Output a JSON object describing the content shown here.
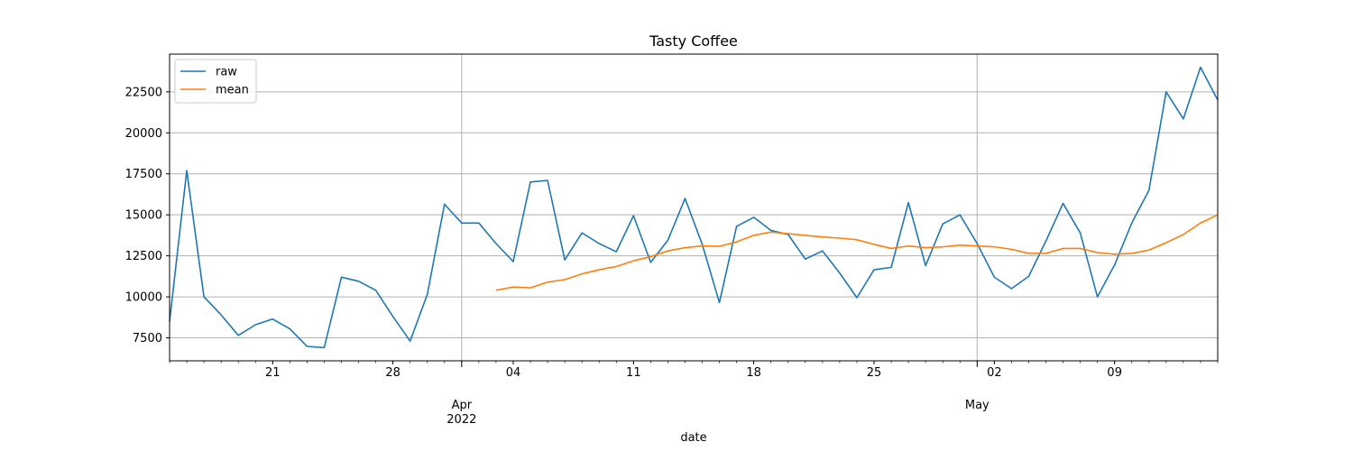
{
  "chart_data": {
    "type": "line",
    "title": "Tasty Coffee",
    "xlabel": "date",
    "ylabel": "",
    "grid": true,
    "legend_position": "upper-left",
    "x_start": "2022-03-15",
    "x_end": "2022-05-15",
    "ylim": [
      6100,
      24800
    ],
    "yticks": [
      7500,
      10000,
      12500,
      15000,
      17500,
      20000,
      22500
    ],
    "minor_ticks": [
      {
        "date": "2022-03-21",
        "label": "21"
      },
      {
        "date": "2022-03-28",
        "label": "28"
      },
      {
        "date": "2022-04-04",
        "label": "04"
      },
      {
        "date": "2022-04-11",
        "label": "11"
      },
      {
        "date": "2022-04-18",
        "label": "18"
      },
      {
        "date": "2022-04-25",
        "label": "25"
      },
      {
        "date": "2022-05-02",
        "label": "02"
      },
      {
        "date": "2022-05-09",
        "label": "09"
      }
    ],
    "major_ticks": [
      {
        "date": "2022-04-01",
        "label": "Apr",
        "sublabel": "2022"
      },
      {
        "date": "2022-05-01",
        "label": "May",
        "sublabel": ""
      }
    ],
    "series": [
      {
        "name": "raw",
        "color": "#1f77b4",
        "points": [
          [
            "2022-03-15",
            8500
          ],
          [
            "2022-03-16",
            17700
          ],
          [
            "2022-03-17",
            10000
          ],
          [
            "2022-03-18",
            8900
          ],
          [
            "2022-03-19",
            7650
          ],
          [
            "2022-03-20",
            8300
          ],
          [
            "2022-03-21",
            8650
          ],
          [
            "2022-03-22",
            8050
          ],
          [
            "2022-03-23",
            6980
          ],
          [
            "2022-03-24",
            6900
          ],
          [
            "2022-03-25",
            11200
          ],
          [
            "2022-03-26",
            10950
          ],
          [
            "2022-03-27",
            10400
          ],
          [
            "2022-03-28",
            8800
          ],
          [
            "2022-03-29",
            7300
          ],
          [
            "2022-03-30",
            10150
          ],
          [
            "2022-03-31",
            15650
          ],
          [
            "2022-04-01",
            14500
          ],
          [
            "2022-04-02",
            14500
          ],
          [
            "2022-04-03",
            13250
          ],
          [
            "2022-04-04",
            12150
          ],
          [
            "2022-04-05",
            17000
          ],
          [
            "2022-04-06",
            17100
          ],
          [
            "2022-04-07",
            12250
          ],
          [
            "2022-04-08",
            13900
          ],
          [
            "2022-04-09",
            13250
          ],
          [
            "2022-04-10",
            12750
          ],
          [
            "2022-04-11",
            14950
          ],
          [
            "2022-04-12",
            12100
          ],
          [
            "2022-04-13",
            13450
          ],
          [
            "2022-04-14",
            16000
          ],
          [
            "2022-04-15",
            13200
          ],
          [
            "2022-04-16",
            9650
          ],
          [
            "2022-04-17",
            14300
          ],
          [
            "2022-04-18",
            14850
          ],
          [
            "2022-04-19",
            14050
          ],
          [
            "2022-04-20",
            13800
          ],
          [
            "2022-04-21",
            12300
          ],
          [
            "2022-04-22",
            12800
          ],
          [
            "2022-04-23",
            11450
          ],
          [
            "2022-04-24",
            9950
          ],
          [
            "2022-04-25",
            11650
          ],
          [
            "2022-04-26",
            11800
          ],
          [
            "2022-04-27",
            15750
          ],
          [
            "2022-04-28",
            11900
          ],
          [
            "2022-04-29",
            14450
          ],
          [
            "2022-04-30",
            15000
          ],
          [
            "2022-05-01",
            13250
          ],
          [
            "2022-05-02",
            11200
          ],
          [
            "2022-05-03",
            10500
          ],
          [
            "2022-05-04",
            11250
          ],
          [
            "2022-05-05",
            13400
          ],
          [
            "2022-05-06",
            15700
          ],
          [
            "2022-05-07",
            13900
          ],
          [
            "2022-05-08",
            10000
          ],
          [
            "2022-05-09",
            11950
          ],
          [
            "2022-05-10",
            14500
          ],
          [
            "2022-05-11",
            16500
          ],
          [
            "2022-05-12",
            22500
          ],
          [
            "2022-05-13",
            20850
          ],
          [
            "2022-05-14",
            24000
          ],
          [
            "2022-05-15",
            22000
          ]
        ]
      },
      {
        "name": "mean",
        "color": "#ff7f0e",
        "points": [
          [
            "2022-04-03",
            10400
          ],
          [
            "2022-04-04",
            10600
          ],
          [
            "2022-04-05",
            10550
          ],
          [
            "2022-04-06",
            10900
          ],
          [
            "2022-04-07",
            11050
          ],
          [
            "2022-04-08",
            11400
          ],
          [
            "2022-04-09",
            11650
          ],
          [
            "2022-04-10",
            11850
          ],
          [
            "2022-04-11",
            12200
          ],
          [
            "2022-04-12",
            12450
          ],
          [
            "2022-04-13",
            12800
          ],
          [
            "2022-04-14",
            13000
          ],
          [
            "2022-04-15",
            13100
          ],
          [
            "2022-04-16",
            13080
          ],
          [
            "2022-04-17",
            13350
          ],
          [
            "2022-04-18",
            13750
          ],
          [
            "2022-04-19",
            13950
          ],
          [
            "2022-04-20",
            13850
          ],
          [
            "2022-04-21",
            13750
          ],
          [
            "2022-04-22",
            13650
          ],
          [
            "2022-04-23",
            13580
          ],
          [
            "2022-04-24",
            13480
          ],
          [
            "2022-04-25",
            13200
          ],
          [
            "2022-04-26",
            12950
          ],
          [
            "2022-04-27",
            13100
          ],
          [
            "2022-04-28",
            13000
          ],
          [
            "2022-04-29",
            13050
          ],
          [
            "2022-04-30",
            13150
          ],
          [
            "2022-05-01",
            13100
          ],
          [
            "2022-05-02",
            13050
          ],
          [
            "2022-05-03",
            12900
          ],
          [
            "2022-05-04",
            12650
          ],
          [
            "2022-05-05",
            12650
          ],
          [
            "2022-05-06",
            12950
          ],
          [
            "2022-05-07",
            12950
          ],
          [
            "2022-05-08",
            12700
          ],
          [
            "2022-05-09",
            12600
          ],
          [
            "2022-05-10",
            12650
          ],
          [
            "2022-05-11",
            12850
          ],
          [
            "2022-05-12",
            13300
          ],
          [
            "2022-05-13",
            13800
          ],
          [
            "2022-05-14",
            14500
          ],
          [
            "2022-05-15",
            15000
          ]
        ]
      }
    ]
  }
}
